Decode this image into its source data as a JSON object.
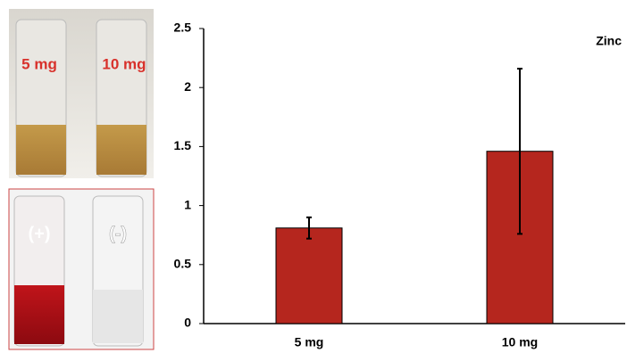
{
  "photo_labels": [
    "5 mg",
    "10 mg",
    "(+)",
    "(-)"
  ],
  "chart_data": {
    "type": "bar",
    "annotation": "Zinc",
    "categories": [
      "5 mg",
      "10 mg"
    ],
    "values": [
      0.81,
      1.46
    ],
    "errors": [
      0.09,
      0.7
    ],
    "color": "#b5261e",
    "ylim": [
      0,
      2.5
    ],
    "yticks": [
      0,
      0.5,
      1,
      1.5,
      2,
      2.5
    ],
    "grid": false
  }
}
